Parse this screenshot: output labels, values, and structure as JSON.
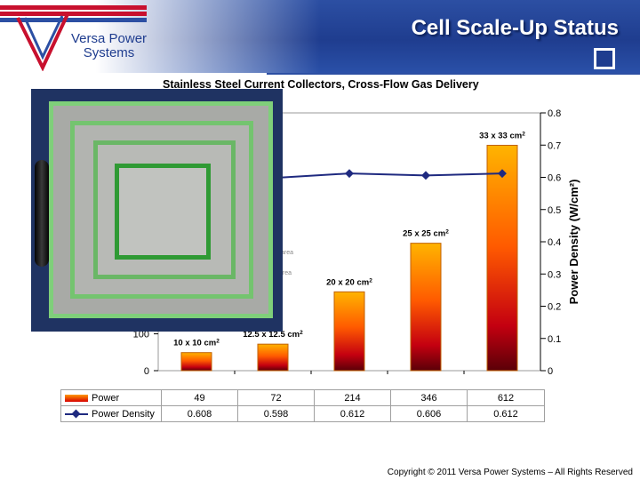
{
  "header": {
    "title": "Cell Scale-Up Status",
    "logo_line1": "Versa Power",
    "logo_line2": "Systems"
  },
  "chart_data": {
    "type": "bar",
    "title": "Stainless Steel Current Collectors, Cross-Flow Gas Delivery",
    "categories": [
      "10 x 10 cm²",
      "12.5 x 12.5 cm²",
      "20 x 20 cm²",
      "25 x 25 cm²",
      "33 x 33 cm²"
    ],
    "bar_labels": [
      "10 x 10 cm",
      "12.5 x 12.5 cm",
      "20 x 20 cm",
      "25 x 25 cm",
      "33 x 33 cm"
    ],
    "series": [
      {
        "name": "Power",
        "type": "bar",
        "values": [
          49,
          72,
          214,
          346,
          612
        ],
        "color": "#e81c00"
      },
      {
        "name": "Power Density",
        "type": "line",
        "values": [
          0.608,
          0.598,
          0.612,
          0.606,
          0.612
        ],
        "color": "#1f2a80"
      }
    ],
    "y_left_ticks": [
      "0",
      "100"
    ],
    "ylim_left": [
      0,
      700
    ],
    "ylabel_right": "Power Density (W/cm²)",
    "ylim_right": [
      0,
      0.8
    ],
    "y_right_ticks": [
      "0",
      "0.1",
      "0.2",
      "0.3",
      "0.4",
      "0.5",
      "0.6",
      "0.7",
      "0.8"
    ],
    "grid": false,
    "legend": "table-bottom",
    "legend_rows": [
      {
        "name": "Power",
        "values": [
          "49",
          "72",
          "214",
          "346",
          "612"
        ]
      },
      {
        "name": "Power Density",
        "values": [
          "0.608",
          "0.598",
          "0.612",
          "0.606",
          "0.612"
        ]
      }
    ],
    "partial_annotations": [
      "area",
      "area"
    ]
  },
  "footer": {
    "copyright": "Copyright © 2011 Versa Power Systems – All Rights Reserved"
  }
}
